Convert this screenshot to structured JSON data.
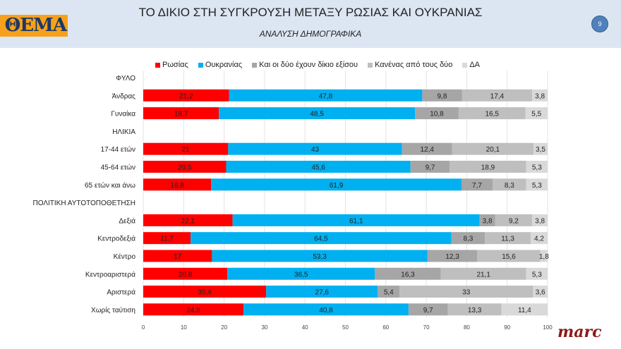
{
  "header": {
    "title": "ΤΟ ΔΙΚΙΟ ΣΤΗ ΣΥΓΚΡΟΥΣΗ ΜΕΤΑΞΥ ΡΩΣΙΑΣ ΚΑΙ ΟΥΚΡΑΝΙΑΣ",
    "subtitle": "ΑΝΑΛΥΣΗ ΔΗΜΟΓΡΑΦΙΚΑ",
    "logo": "ΘΕΜΑ",
    "page_number": "9"
  },
  "footer": {
    "brand": "marc"
  },
  "chart_data": {
    "type": "bar",
    "orientation": "horizontal-stacked",
    "xlim": [
      0,
      100
    ],
    "xticks": [
      "0",
      "10",
      "20",
      "30",
      "40",
      "50",
      "60",
      "70",
      "80",
      "90",
      "100"
    ],
    "grid": true,
    "legend_position": "top",
    "categories": [
      "ΦΥΛΟ",
      "Άνδρας",
      "Γυναίκα",
      "ΗΛΙΚΙΑ",
      "17-44 ετών",
      "45-64 ετών",
      "65 ετών και άνω",
      "ΠΟΛΙΤΙΚΗ ΑΥΤΟΤΟΠΟΘΕΤΗΣΗ",
      "Δεξιά",
      "Κεντροδεξιά",
      "Κέντρο",
      "Κεντροαριστερά",
      "Αριστερά",
      "Χωρίς ταύτιση"
    ],
    "series": [
      {
        "name": "Ρωσίας",
        "color": "#ff0000",
        "values": [
          null,
          21.2,
          18.7,
          null,
          21,
          20.5,
          16.8,
          null,
          22.1,
          11.7,
          17,
          20.8,
          30.4,
          24.8
        ]
      },
      {
        "name": "Ουκρανίας",
        "color": "#00b0f0",
        "values": [
          null,
          47.8,
          48.5,
          null,
          43,
          45.6,
          61.9,
          null,
          61.1,
          64.5,
          53.3,
          36.5,
          27.6,
          40.8
        ]
      },
      {
        "name": "Και οι δύο έχουν δίκιο εξίσου",
        "color": "#a6a6a6",
        "values": [
          null,
          9.8,
          10.8,
          null,
          12.4,
          9.7,
          7.7,
          null,
          3.8,
          8.3,
          12.3,
          16.3,
          5.4,
          9.7
        ]
      },
      {
        "name": "Κανένας από τους δύο",
        "color": "#bfbfbf",
        "values": [
          null,
          17.4,
          16.5,
          null,
          20.1,
          18.9,
          8.3,
          null,
          9.2,
          11.3,
          15.6,
          21.1,
          33,
          13.3
        ]
      },
      {
        "name": "ΔΑ",
        "color": "#d9d9d9",
        "values": [
          null,
          3.8,
          5.5,
          null,
          3.5,
          5.3,
          5.3,
          null,
          3.8,
          4.2,
          1.8,
          5.3,
          3.6,
          11.4
        ]
      }
    ]
  }
}
